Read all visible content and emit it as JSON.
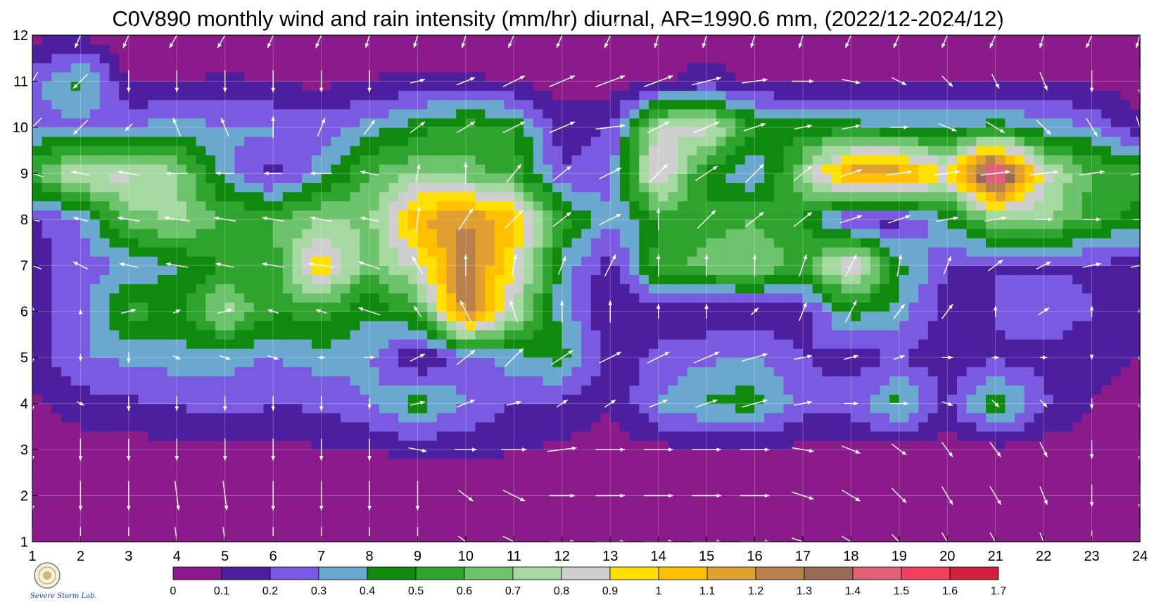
{
  "chart_data": {
    "type": "heatmap",
    "title": "C0V890 monthly wind and rain intensity (mm/hr) diurnal, AR=1990.6 mm, (2022/12-2024/12)",
    "xlabel": "",
    "ylabel": "",
    "x_ticks": [
      "1",
      "2",
      "3",
      "4",
      "5",
      "6",
      "7",
      "8",
      "9",
      "10",
      "11",
      "12",
      "13",
      "14",
      "15",
      "16",
      "17",
      "18",
      "19",
      "20",
      "21",
      "22",
      "23",
      "24"
    ],
    "y_ticks": [
      "1",
      "2",
      "3",
      "4",
      "5",
      "6",
      "7",
      "8",
      "9",
      "10",
      "11",
      "12"
    ],
    "xlim": [
      1,
      24
    ],
    "ylim": [
      1,
      12
    ],
    "colorbar": {
      "levels": [
        "0",
        "0.1",
        "0.2",
        "0.3",
        "0.4",
        "0.5",
        "0.6",
        "0.7",
        "0.8",
        "0.9",
        "1",
        "1.1",
        "1.2",
        "1.3",
        "1.4",
        "1.5",
        "1.6",
        "1.7"
      ],
      "colors": [
        "#8b1a8b",
        "#4b1f9e",
        "#7a5ae0",
        "#6aa8d0",
        "#0f8a0f",
        "#2ea32e",
        "#6cc36c",
        "#a6d8a2",
        "#cfcfcf",
        "#ffe000",
        "#ffc000",
        "#e0a030",
        "#b8804a",
        "#9a6a58",
        "#e0607a",
        "#f04060",
        "#d0203c"
      ],
      "contour_color": "#e8a020"
    },
    "y_values": [
      1,
      2,
      3,
      4,
      5,
      6,
      7,
      8,
      9,
      10,
      11,
      12
    ],
    "rain": [
      [
        0.03,
        0.03,
        0.03,
        0.04,
        0.04,
        0.04,
        0.04,
        0.04,
        0.04,
        0.05,
        0.05,
        0.05,
        0.05,
        0.05,
        0.05,
        0.05,
        0.05,
        0.05,
        0.05,
        0.05,
        0.05,
        0.05,
        0.05,
        0.05
      ],
      [
        0.03,
        0.03,
        0.03,
        0.04,
        0.04,
        0.04,
        0.04,
        0.04,
        0.04,
        0.05,
        0.05,
        0.05,
        0.05,
        0.05,
        0.05,
        0.05,
        0.05,
        0.05,
        0.05,
        0.05,
        0.05,
        0.05,
        0.05,
        0.05
      ],
      [
        0.03,
        0.05,
        0.06,
        0.07,
        0.08,
        0.08,
        0.09,
        0.1,
        0.12,
        0.12,
        0.1,
        0.08,
        0.06,
        0.07,
        0.08,
        0.09,
        0.08,
        0.06,
        0.06,
        0.05,
        0.06,
        0.05,
        0.04,
        0.04
      ],
      [
        0.08,
        0.15,
        0.18,
        0.2,
        0.25,
        0.2,
        0.22,
        0.3,
        0.45,
        0.3,
        0.2,
        0.18,
        0.1,
        0.32,
        0.42,
        0.45,
        0.25,
        0.25,
        0.45,
        0.18,
        0.5,
        0.22,
        0.1,
        0.06
      ],
      [
        0.12,
        0.3,
        0.32,
        0.35,
        0.33,
        0.3,
        0.35,
        0.32,
        0.08,
        0.25,
        0.35,
        0.45,
        0.15,
        0.22,
        0.28,
        0.32,
        0.2,
        0.15,
        0.2,
        0.12,
        0.18,
        0.15,
        0.12,
        0.1
      ],
      [
        0.15,
        0.25,
        0.55,
        0.45,
        0.75,
        0.5,
        0.55,
        0.4,
        0.55,
        1.25,
        0.8,
        0.35,
        0.1,
        0.15,
        0.12,
        0.12,
        0.15,
        0.45,
        0.35,
        0.15,
        0.2,
        0.3,
        0.2,
        0.15
      ],
      [
        0.15,
        0.25,
        0.3,
        0.4,
        0.5,
        0.55,
        1.0,
        0.62,
        0.85,
        1.3,
        0.9,
        0.35,
        0.15,
        0.55,
        0.65,
        0.7,
        0.55,
        0.95,
        0.45,
        0.2,
        0.2,
        0.18,
        0.18,
        0.15
      ],
      [
        0.18,
        0.3,
        0.65,
        0.72,
        0.6,
        0.6,
        0.7,
        0.68,
        1.1,
        1.2,
        1.05,
        0.55,
        0.3,
        0.5,
        0.55,
        0.6,
        0.5,
        0.15,
        0.15,
        0.4,
        0.68,
        0.72,
        0.55,
        0.45
      ],
      [
        0.6,
        0.85,
        0.82,
        0.72,
        0.35,
        0.15,
        0.35,
        0.6,
        0.7,
        0.65,
        0.55,
        0.2,
        0.25,
        0.95,
        0.45,
        0.3,
        0.7,
        1.2,
        1.2,
        0.9,
        1.6,
        0.85,
        0.6,
        0.55
      ],
      [
        0.3,
        0.25,
        0.3,
        0.35,
        0.3,
        0.32,
        0.25,
        0.35,
        0.45,
        0.55,
        0.5,
        0.15,
        0.2,
        0.8,
        0.85,
        0.5,
        0.45,
        0.45,
        0.4,
        0.4,
        0.45,
        0.35,
        0.3,
        0.12
      ],
      [
        0.25,
        0.45,
        0.08,
        0.08,
        0.12,
        0.08,
        0.08,
        0.1,
        0.12,
        0.12,
        0.08,
        0.05,
        0.05,
        0.08,
        0.15,
        0.08,
        0.08,
        0.08,
        0.08,
        0.08,
        0.08,
        0.08,
        0.08,
        0.05
      ],
      [
        0.08,
        0.08,
        0.05,
        0.05,
        0.05,
        0.05,
        0.05,
        0.05,
        0.05,
        0.05,
        0.05,
        0.05,
        0.05,
        0.05,
        0.05,
        0.05,
        0.05,
        0.05,
        0.05,
        0.05,
        0.05,
        0.05,
        0.05,
        0.05
      ]
    ],
    "wind_u": [
      [
        0.0,
        0.0,
        0.0,
        0.1,
        0.1,
        0.0,
        0.0,
        0.0,
        0.0,
        0.4,
        0.6,
        0.7,
        0.8,
        0.8,
        0.8,
        0.8,
        0.6,
        0.5,
        0.4,
        0.3,
        0.3,
        0.2,
        0.0,
        0.0
      ],
      [
        0.0,
        0.0,
        0.0,
        0.1,
        0.1,
        0.0,
        0.0,
        0.0,
        0.0,
        0.4,
        0.6,
        0.7,
        0.8,
        0.8,
        0.8,
        0.8,
        0.6,
        0.5,
        0.4,
        0.3,
        0.3,
        0.2,
        0.0,
        0.0
      ],
      [
        0.0,
        0.0,
        0.0,
        0.0,
        0.0,
        0.0,
        0.0,
        0.0,
        0.5,
        0.6,
        0.7,
        0.8,
        0.8,
        0.8,
        0.8,
        0.8,
        0.6,
        0.5,
        0.4,
        0.3,
        0.3,
        0.2,
        0.0,
        0.0
      ],
      [
        0.0,
        0.2,
        0.0,
        0.0,
        0.0,
        0.0,
        0.0,
        0.0,
        0.4,
        0.5,
        0.4,
        0.3,
        0.3,
        0.5,
        0.6,
        0.7,
        0.5,
        0.4,
        0.5,
        0.3,
        0.2,
        0.2,
        0.0,
        0.0
      ],
      [
        0.0,
        0.0,
        0.0,
        0.2,
        0.3,
        0.3,
        0.2,
        0.3,
        0.4,
        0.5,
        0.5,
        0.6,
        0.6,
        0.6,
        0.7,
        0.7,
        0.5,
        0.4,
        0.3,
        0.3,
        0.2,
        0.2,
        0.0,
        0.0
      ],
      [
        0.0,
        0.0,
        0.4,
        0.2,
        0.4,
        -0.3,
        -0.3,
        -0.6,
        -0.2,
        -0.3,
        -0.2,
        0.0,
        0.0,
        0.0,
        0.0,
        0.2,
        0.2,
        0.3,
        0.3,
        0.3,
        0.0,
        0.3,
        0.0,
        0.0
      ],
      [
        -0.5,
        -0.4,
        -0.5,
        -0.6,
        -0.5,
        -0.6,
        -0.7,
        -0.6,
        -0.3,
        0.0,
        0.1,
        0.2,
        0.3,
        0.0,
        0.0,
        0.0,
        0.2,
        0.3,
        0.1,
        0.2,
        0.4,
        0.4,
        0.5,
        0.5
      ],
      [
        -0.4,
        -0.4,
        -0.6,
        -0.7,
        -0.6,
        -0.6,
        -0.6,
        -0.5,
        0.1,
        0.4,
        0.5,
        0.5,
        0.6,
        0.0,
        0.5,
        0.5,
        0.5,
        0.6,
        0.6,
        0.6,
        0.6,
        0.5,
        0.5,
        0.4
      ],
      [
        -0.6,
        -0.5,
        -0.6,
        -0.6,
        -0.5,
        -0.5,
        -0.6,
        -0.5,
        0.1,
        0.0,
        0.4,
        0.5,
        0.6,
        0.5,
        0.6,
        0.5,
        0.5,
        0.6,
        0.7,
        0.7,
        0.8,
        0.8,
        0.7,
        0.5
      ],
      [
        -0.5,
        -0.4,
        -0.2,
        -0.2,
        -0.2,
        0.0,
        0.2,
        0.3,
        0.4,
        0.5,
        0.6,
        0.7,
        0.8,
        0.6,
        0.7,
        0.6,
        0.5,
        0.5,
        0.5,
        0.5,
        0.5,
        0.4,
        0.3,
        0.2
      ],
      [
        -0.3,
        -0.4,
        0.0,
        0.0,
        0.0,
        0.0,
        0.0,
        0.0,
        0.4,
        0.5,
        0.6,
        0.7,
        0.8,
        0.8,
        0.8,
        0.7,
        0.6,
        0.5,
        0.4,
        0.3,
        0.2,
        0.2,
        0.0,
        0.0
      ],
      [
        -0.3,
        -0.3,
        -0.3,
        -0.4,
        -0.4,
        -0.3,
        -0.3,
        -0.2,
        -0.2,
        -0.2,
        -0.3,
        -0.3,
        -0.3,
        -0.2,
        -0.2,
        -0.2,
        -0.2,
        -0.3,
        -0.3,
        -0.3,
        -0.3,
        -0.2,
        -0.3,
        -0.2
      ]
    ],
    "wind_v": [
      [
        -0.8,
        -0.8,
        -0.8,
        -0.8,
        -0.8,
        -0.8,
        -0.8,
        -0.8,
        -0.8,
        -0.3,
        -0.3,
        0.0,
        0.0,
        0.0,
        0.0,
        0.0,
        -0.2,
        -0.3,
        -0.4,
        -0.5,
        -0.5,
        -0.5,
        -0.6,
        -0.7
      ],
      [
        -0.8,
        -0.8,
        -0.8,
        -0.8,
        -0.8,
        -0.8,
        -0.8,
        -0.8,
        -0.8,
        -0.3,
        -0.3,
        0.0,
        0.0,
        0.0,
        0.0,
        0.0,
        -0.2,
        -0.3,
        -0.4,
        -0.5,
        -0.5,
        -0.5,
        -0.6,
        -0.7
      ],
      [
        -0.6,
        -0.6,
        -0.6,
        -0.6,
        -0.6,
        -0.6,
        -0.6,
        -0.6,
        -0.1,
        0.0,
        0.0,
        0.1,
        0.0,
        0.0,
        0.0,
        0.0,
        -0.1,
        -0.2,
        -0.3,
        -0.4,
        -0.4,
        -0.4,
        -0.5,
        -0.6
      ],
      [
        -0.4,
        -0.1,
        -0.4,
        -0.4,
        -0.4,
        -0.4,
        -0.4,
        -0.3,
        0.1,
        0.2,
        0.1,
        0.2,
        0.2,
        0.2,
        0.2,
        0.2,
        0.1,
        0.0,
        0.0,
        -0.1,
        -0.2,
        -0.2,
        -0.3,
        -0.3
      ],
      [
        -0.3,
        -0.2,
        -0.3,
        -0.1,
        -0.1,
        -0.1,
        0.0,
        0.0,
        0.2,
        0.4,
        0.5,
        0.4,
        0.3,
        0.3,
        0.3,
        0.2,
        0.1,
        0.1,
        0.1,
        0.0,
        0.0,
        0.0,
        -0.1,
        -0.2
      ],
      [
        0.3,
        0.1,
        0.1,
        0.1,
        0.1,
        0.1,
        0.1,
        0.2,
        0.3,
        0.6,
        0.6,
        0.6,
        0.6,
        0.4,
        0.4,
        0.2,
        0.5,
        0.6,
        0.4,
        0.4,
        0.3,
        0.2,
        0.3,
        0.2
      ],
      [
        0.2,
        0.2,
        0.1,
        0.1,
        0.1,
        0.1,
        0.1,
        0.2,
        0.5,
        0.6,
        0.6,
        0.5,
        0.6,
        0.6,
        0.6,
        0.6,
        0.6,
        0.6,
        0.6,
        0.5,
        0.3,
        0.2,
        0.1,
        0.1
      ],
      [
        0.1,
        0.1,
        0.1,
        0.1,
        0.1,
        0.1,
        0.1,
        0.1,
        0.7,
        0.6,
        0.5,
        0.4,
        0.3,
        0.6,
        0.5,
        0.4,
        0.4,
        0.2,
        0.2,
        0.1,
        0.1,
        0.0,
        0.0,
        0.0
      ],
      [
        0.2,
        0.1,
        0.1,
        0.0,
        0.0,
        0.0,
        0.0,
        0.1,
        0.5,
        0.6,
        0.5,
        0.4,
        0.3,
        0.5,
        0.4,
        0.5,
        0.4,
        0.2,
        0.1,
        0.1,
        0.1,
        0.1,
        0.1,
        0.1
      ],
      [
        -0.5,
        -0.4,
        -0.2,
        0.5,
        0.5,
        0.6,
        0.5,
        0.4,
        0.3,
        0.3,
        0.3,
        0.3,
        0.1,
        0.3,
        0.3,
        0.2,
        0.1,
        0.1,
        0.0,
        -0.2,
        -0.3,
        -0.4,
        -0.5,
        -0.6
      ],
      [
        -0.5,
        -0.4,
        -0.6,
        -0.6,
        -0.6,
        -0.6,
        -0.6,
        -0.6,
        0.1,
        0.2,
        0.3,
        0.3,
        0.3,
        0.3,
        0.2,
        0.1,
        0.0,
        -0.1,
        -0.2,
        -0.3,
        -0.4,
        -0.5,
        -0.6,
        -0.7
      ],
      [
        -0.7,
        -0.7,
        -0.7,
        -0.7,
        -0.7,
        -0.7,
        -0.7,
        -0.7,
        -0.7,
        -0.7,
        -0.7,
        -0.7,
        -0.7,
        -0.7,
        -0.7,
        -0.7,
        -0.7,
        -0.7,
        -0.7,
        -0.7,
        -0.7,
        -0.7,
        -0.7,
        -0.7
      ]
    ]
  },
  "logo": {
    "text": "Severe Storm Lab.",
    "colors": [
      "#1a3aa8",
      "#e02020",
      "#20a040"
    ]
  }
}
